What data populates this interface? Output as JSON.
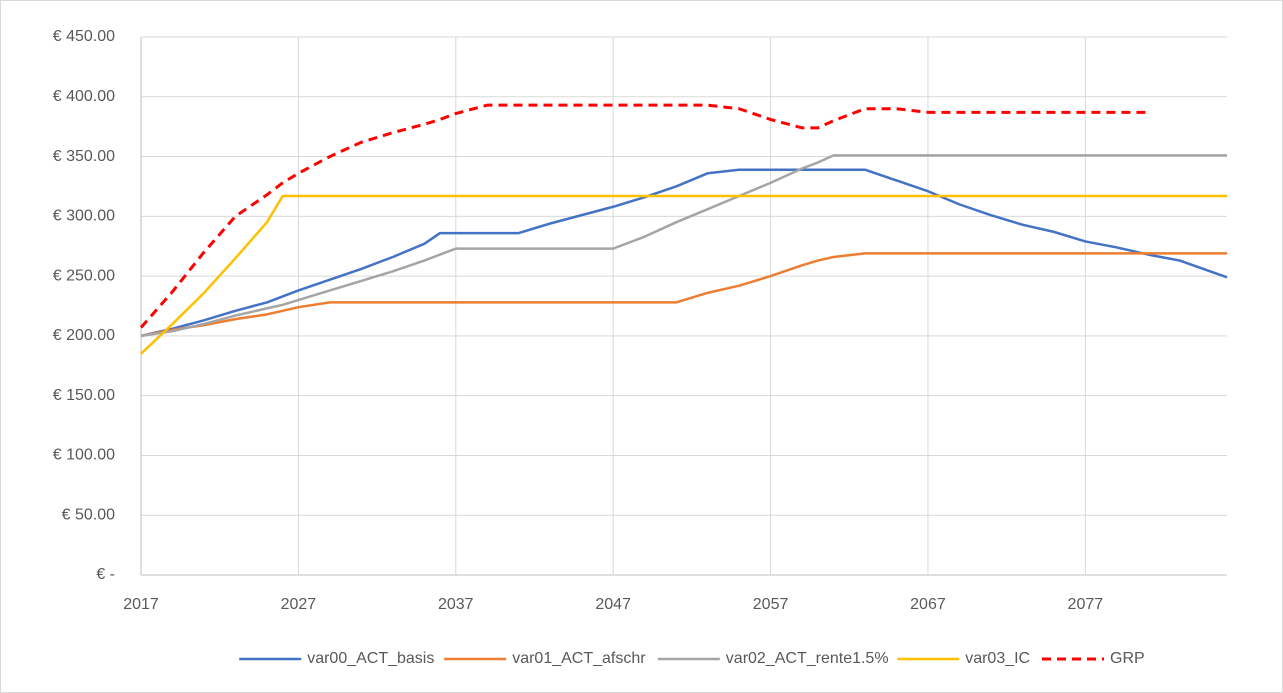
{
  "chart_data": {
    "type": "line",
    "x": [
      2017,
      2019,
      2021,
      2023,
      2025,
      2026,
      2027,
      2029,
      2031,
      2033,
      2035,
      2036,
      2037,
      2039,
      2041,
      2043,
      2045,
      2047,
      2049,
      2051,
      2053,
      2055,
      2057,
      2059,
      2060,
      2061,
      2063,
      2065,
      2067,
      2069,
      2071,
      2073,
      2075,
      2077,
      2079,
      2081,
      2083,
      2086
    ],
    "series": [
      {
        "name": "var00_ACT_basis",
        "color": "#4472c4",
        "dashed": false,
        "values": [
          200,
          206,
          213,
          221,
          228,
          233,
          238,
          247,
          256,
          266,
          277,
          286,
          286,
          286,
          286,
          294,
          301,
          308,
          316,
          325,
          336,
          339,
          339,
          339,
          339,
          339,
          339,
          330,
          321,
          310,
          301,
          293,
          287,
          279,
          274,
          268,
          263,
          249
        ]
      },
      {
        "name": "var01_ACT_afschr",
        "color": "#ed7d31",
        "dashed": false,
        "values": [
          200,
          205,
          209,
          214,
          218,
          221,
          224,
          228,
          228,
          228,
          228,
          228,
          228,
          228,
          228,
          228,
          228,
          228,
          228,
          228,
          236,
          242,
          250,
          259,
          263,
          266,
          269,
          269,
          269,
          269,
          269,
          269,
          269,
          269,
          269,
          269,
          269,
          269
        ]
      },
      {
        "name": "var02_ACT_rente1.5%",
        "color": "#a5a5a5",
        "dashed": false,
        "values": [
          200,
          204,
          210,
          217,
          223,
          226,
          230,
          238,
          246,
          254,
          263,
          268,
          273,
          273,
          273,
          273,
          273,
          273,
          283,
          295,
          306,
          317,
          328,
          340,
          345,
          351,
          351,
          351,
          351,
          351,
          351,
          351,
          351,
          351,
          351,
          351,
          351,
          351
        ]
      },
      {
        "name": "var03_IC",
        "color": "#ffc000",
        "dashed": false,
        "values": [
          185,
          210,
          236,
          265,
          295,
          317,
          317,
          317,
          317,
          317,
          317,
          317,
          317,
          317,
          317,
          317,
          317,
          317,
          317,
          317,
          317,
          317,
          317,
          317,
          317,
          317,
          317,
          317,
          317,
          317,
          317,
          317,
          317,
          317,
          317,
          317,
          317,
          317
        ]
      },
      {
        "name": "GRP",
        "color": "#ff0000",
        "dashed": true,
        "values": [
          207,
          237,
          270,
          300,
          318,
          328,
          336,
          350,
          362,
          370,
          377,
          381,
          386,
          393,
          393,
          393,
          393,
          393,
          393,
          393,
          393,
          390,
          381,
          374,
          374,
          380,
          390,
          390,
          387,
          387,
          387,
          387,
          387,
          387,
          387,
          387,
          null,
          null
        ]
      }
    ],
    "xlim": [
      2017,
      2086
    ],
    "xticks": [
      2017,
      2027,
      2037,
      2047,
      2057,
      2067,
      2077
    ],
    "ylim": [
      0,
      450
    ],
    "yticks": [
      {
        "value": 0,
        "label": "€ -"
      },
      {
        "value": 50,
        "label": "€ 50.00"
      },
      {
        "value": 100,
        "label": "€ 100.00"
      },
      {
        "value": 150,
        "label": "€ 150.00"
      },
      {
        "value": 200,
        "label": "€ 200.00"
      },
      {
        "value": 250,
        "label": "€ 250.00"
      },
      {
        "value": 300,
        "label": "€ 300.00"
      },
      {
        "value": 350,
        "label": "€ 350.00"
      },
      {
        "value": 400,
        "label": "€ 400.00"
      },
      {
        "value": 450,
        "label": "€ 450.00"
      }
    ],
    "grid": true,
    "legend": "bottom"
  }
}
